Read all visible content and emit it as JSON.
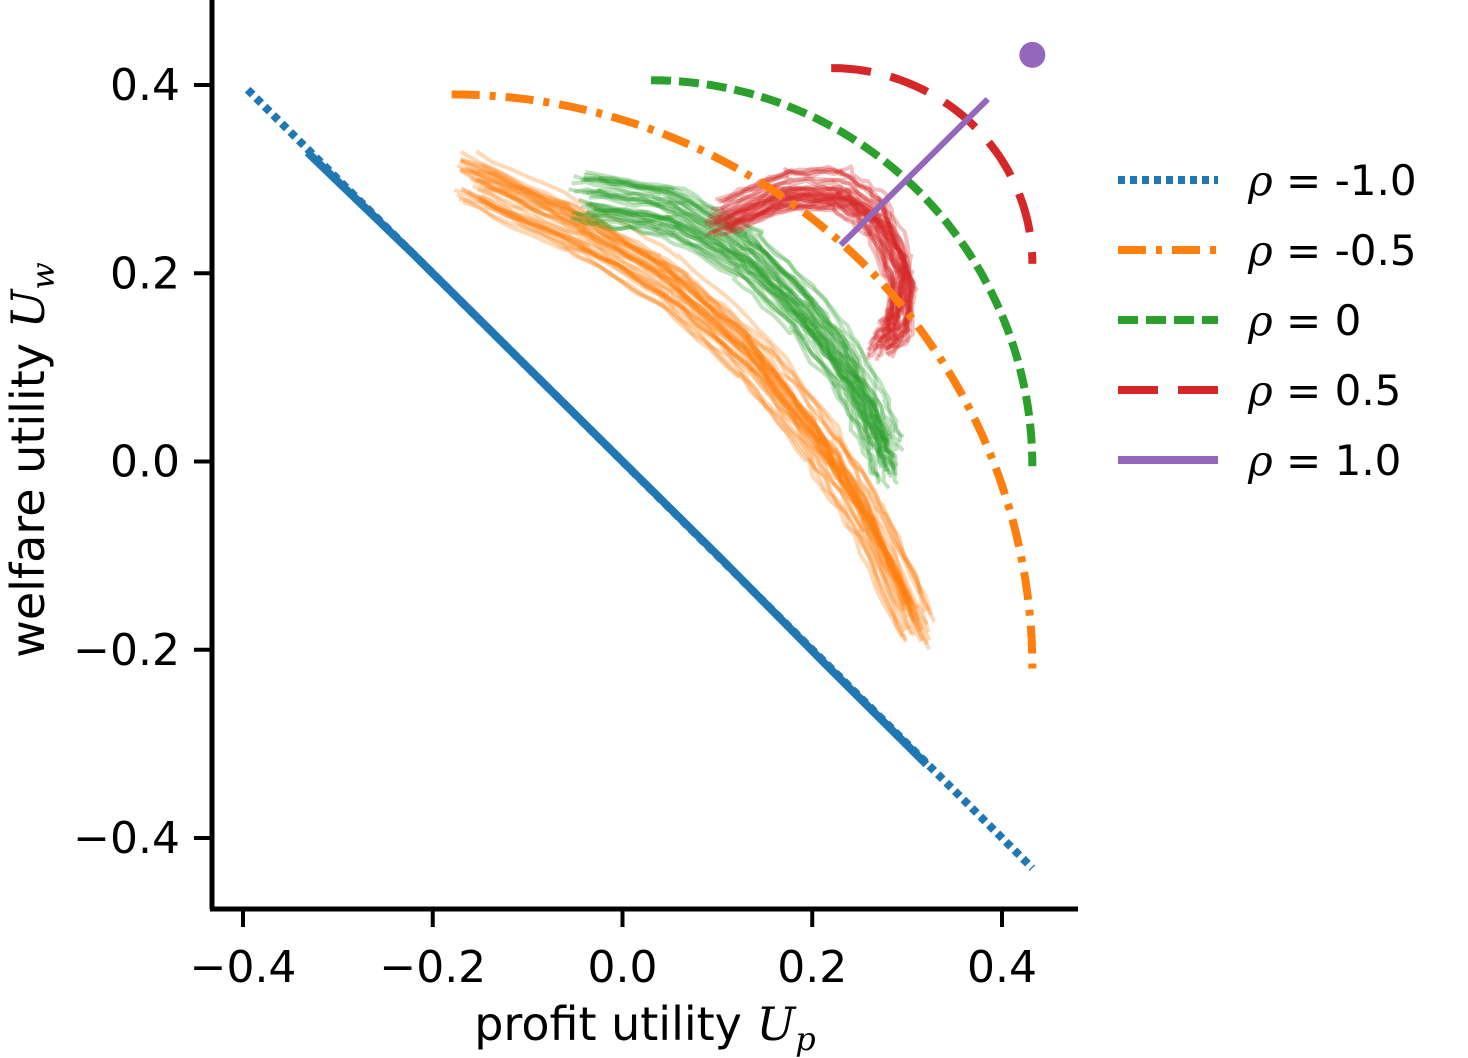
{
  "chart_data": {
    "type": "line",
    "xlabel": "profit utility",
    "xlabel_symbol": "U",
    "xlabel_sub": "p",
    "ylabel": "welfare utility",
    "ylabel_symbol": "U",
    "ylabel_sub": "w",
    "xlim": [
      -0.43,
      0.49
    ],
    "ylim": [
      -0.47,
      0.49
    ],
    "xticks": [
      -0.4,
      -0.2,
      0.0,
      0.2,
      0.4
    ],
    "xtick_labels": [
      "−0.4",
      "−0.2",
      "0.0",
      "0.2",
      "0.4"
    ],
    "yticks": [
      -0.4,
      -0.2,
      0.0,
      0.2,
      0.4
    ],
    "ytick_labels": [
      "−0.4",
      "−0.2",
      "0.0",
      "0.2",
      "0.4"
    ],
    "legend_position": "right",
    "series": [
      {
        "name": "ρ = -1.0",
        "rho": -1.0,
        "color": "#1f77b4",
        "dash": "dotted",
        "endpoints_x": [
          -0.395,
          0.432
        ],
        "endpoints_y": [
          0.395,
          -0.432
        ]
      },
      {
        "name": "ρ = -0.5",
        "rho": -0.5,
        "color": "#ff7f0e",
        "dash": "dashdot",
        "endpoints_x": [
          -0.18,
          0.432
        ],
        "endpoints_y": [
          0.39,
          -0.22
        ]
      },
      {
        "name": "ρ = 0",
        "rho": 0,
        "color": "#2ca02c",
        "dash": "dashed",
        "endpoints_x": [
          0.03,
          0.432
        ],
        "endpoints_y": [
          0.405,
          -0.005
        ]
      },
      {
        "name": "ρ = 0.5",
        "rho": 0.5,
        "color": "#d62728",
        "dash": "longdash",
        "endpoints_x": [
          0.22,
          0.432
        ],
        "endpoints_y": [
          0.418,
          0.21
        ]
      },
      {
        "name": "ρ = 1.0",
        "rho": 1.0,
        "color": "#9467bd",
        "dash": "solid",
        "point": [
          0.432,
          0.432
        ]
      }
    ],
    "trajectory_bands": [
      {
        "series": "ρ = -1.0",
        "color": "#1f77b4",
        "center": [
          [
            -0.33,
            0.33
          ],
          [
            0.32,
            -0.32
          ]
        ],
        "spread": 0.004
      },
      {
        "series": "ρ = -0.5",
        "color": "#ff7f0e",
        "center": [
          [
            -0.16,
            0.3
          ],
          [
            -0.05,
            0.25
          ],
          [
            0.05,
            0.19
          ],
          [
            0.14,
            0.11
          ],
          [
            0.21,
            0.02
          ],
          [
            0.26,
            -0.06
          ],
          [
            0.31,
            -0.17
          ]
        ],
        "spread": 0.028
      },
      {
        "series": "ρ = 0",
        "color": "#2ca02c",
        "center": [
          [
            -0.04,
            0.28
          ],
          [
            0.05,
            0.265
          ],
          [
            0.13,
            0.22
          ],
          [
            0.19,
            0.16
          ],
          [
            0.235,
            0.1
          ],
          [
            0.265,
            0.04
          ],
          [
            0.28,
            0.0
          ]
        ],
        "spread": 0.026
      },
      {
        "series": "ρ = 0.5",
        "color": "#d62728",
        "center": [
          [
            0.1,
            0.26
          ],
          [
            0.17,
            0.29
          ],
          [
            0.23,
            0.29
          ],
          [
            0.27,
            0.26
          ],
          [
            0.295,
            0.2
          ],
          [
            0.29,
            0.15
          ],
          [
            0.27,
            0.13
          ]
        ],
        "spread": 0.022
      }
    ],
    "mean_trajectory_rho1": {
      "color": "#9467bd",
      "x": [
        0.23,
        0.385
      ],
      "y": [
        0.23,
        0.385
      ]
    }
  }
}
